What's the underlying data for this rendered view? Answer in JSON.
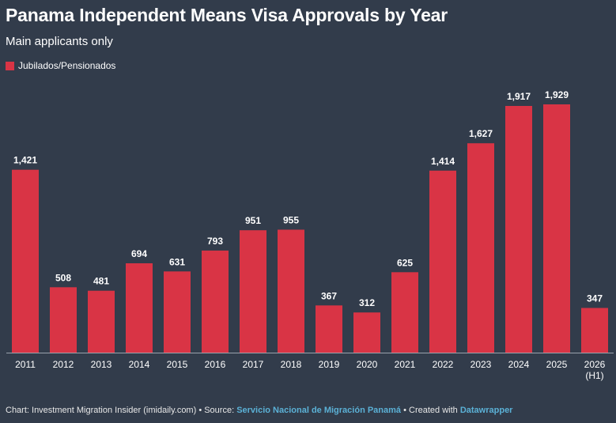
{
  "title": "Panama Independent Means Visa Approvals by Year",
  "subtitle": "Main applicants only",
  "colors": {
    "background": "#323c4b",
    "bar": "#d93445",
    "text": "#ffffff",
    "link": "#5bb1d6"
  },
  "chart_data": {
    "type": "bar",
    "title": "Panama Independent Means Visa Approvals by Year",
    "subtitle": "Main applicants only",
    "xlabel": "",
    "ylabel": "",
    "grid": false,
    "legend_position": "top-left",
    "ylim": [
      0,
      2000
    ],
    "categories": [
      "2011",
      "2012",
      "2013",
      "2014",
      "2015",
      "2016",
      "2017",
      "2018",
      "2019",
      "2020",
      "2021",
      "2022",
      "2023",
      "2024",
      "2025",
      "2026\n(H1)"
    ],
    "series": [
      {
        "name": "Jubilados/Pensionados",
        "values": [
          1421,
          508,
          481,
          694,
          631,
          793,
          951,
          955,
          367,
          312,
          625,
          1414,
          1627,
          1917,
          1929,
          347
        ],
        "labels": [
          "1,421",
          "508",
          "481",
          "694",
          "631",
          "793",
          "951",
          "955",
          "367",
          "312",
          "625",
          "1,414",
          "1,627",
          "1,917",
          "1,929",
          "347"
        ]
      }
    ]
  },
  "footer": {
    "prefix": "Chart: Investment Migration Insider (imidaily.com) • Source: ",
    "source": "Servicio Nacional de Migración Panamá",
    "middle": " • Created with ",
    "tool": "Datawrapper"
  }
}
